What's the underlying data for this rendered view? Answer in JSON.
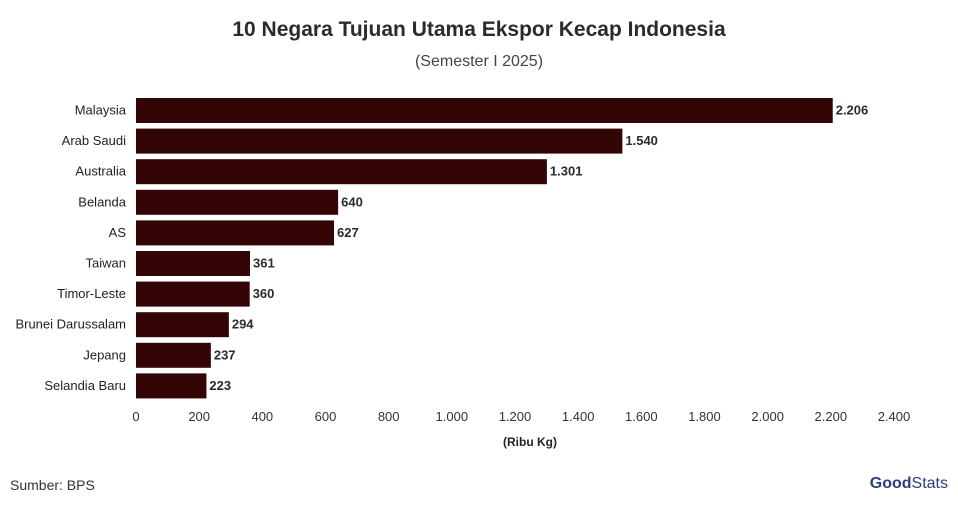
{
  "title": "10 Negara Tujuan Utama Ekspor Kecap Indonesia",
  "subtitle": "(Semester I 2025)",
  "source": "Sumber: BPS",
  "brand": {
    "part1": "Good",
    "part2": "Stats"
  },
  "colors": {
    "bar": "#330505",
    "brand": "#2c3e7a"
  },
  "chart_data": {
    "type": "bar",
    "orientation": "horizontal",
    "categories": [
      "Malaysia",
      "Arab Saudi",
      "Australia",
      "Belanda",
      "AS",
      "Taiwan",
      "Timor-Leste",
      "Brunei Darussalam",
      "Jepang",
      "Selandia Baru"
    ],
    "values": [
      2206,
      1540,
      1301,
      640,
      627,
      361,
      360,
      294,
      237,
      223
    ],
    "value_labels": [
      "2.206",
      "1.540",
      "1.301",
      "640",
      "627",
      "361",
      "360",
      "294",
      "237",
      "223"
    ],
    "xlabel": "(Ribu Kg)",
    "xlim": [
      0,
      2400
    ],
    "xticks": [
      0,
      200,
      400,
      600,
      800,
      1000,
      1200,
      1400,
      1600,
      1800,
      2000,
      2200,
      2400
    ],
    "xtick_labels": [
      "0",
      "200",
      "400",
      "600",
      "800",
      "1.000",
      "1.200",
      "1.400",
      "1.600",
      "1.800",
      "2.000",
      "2.200",
      "2.400"
    ],
    "grid": false,
    "legend": "none"
  }
}
